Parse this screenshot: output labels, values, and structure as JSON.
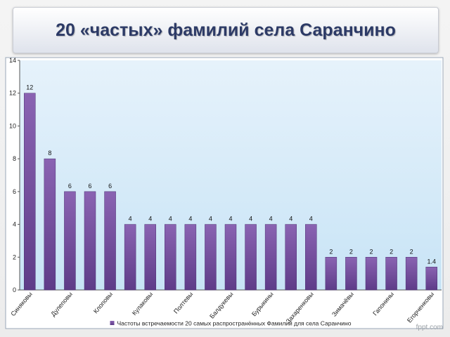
{
  "slide": {
    "title": "20 «частых» фамилий села Саранчино",
    "watermark": "fppt.com"
  },
  "chart_data": {
    "type": "bar",
    "title": "",
    "xlabel": "",
    "ylabel": "",
    "ylim": [
      0,
      14
    ],
    "yticks": [
      0,
      2,
      4,
      6,
      8,
      10,
      12,
      14
    ],
    "grid": false,
    "legend_position": "bottom",
    "categories": [
      "Синяковы",
      "",
      "Дулеповы",
      "",
      "Клоповы",
      "",
      "Кулаковы",
      "",
      "Полтевы",
      "",
      "Балдукевы",
      "",
      "Бурыкины",
      "",
      "Захаренковы",
      "",
      "Зимачёвы",
      "",
      "Гапонины",
      "",
      "Егорченковы"
    ],
    "series": [
      {
        "name": "Частоты встречаемости 20 самых распространённых Фамилий для села Саранчино",
        "values": [
          12,
          8,
          6,
          6,
          6,
          4,
          4,
          4,
          4,
          4,
          4,
          4,
          4,
          4,
          4,
          2,
          2,
          2,
          2,
          2,
          1.4
        ],
        "labels": [
          "12",
          "8",
          "6",
          "6",
          "6",
          "4",
          "4",
          "4",
          "4",
          "4",
          "4",
          "4",
          "4",
          "4",
          "4",
          "2",
          "2",
          "2",
          "2",
          "2",
          "1.4"
        ]
      }
    ],
    "colors": {
      "bar_top": "#8a63b2",
      "bar_bottom": "#5e3c88",
      "plot_bg_top": "#e6f2fb",
      "plot_bg_bottom": "#c8e4f6"
    }
  }
}
